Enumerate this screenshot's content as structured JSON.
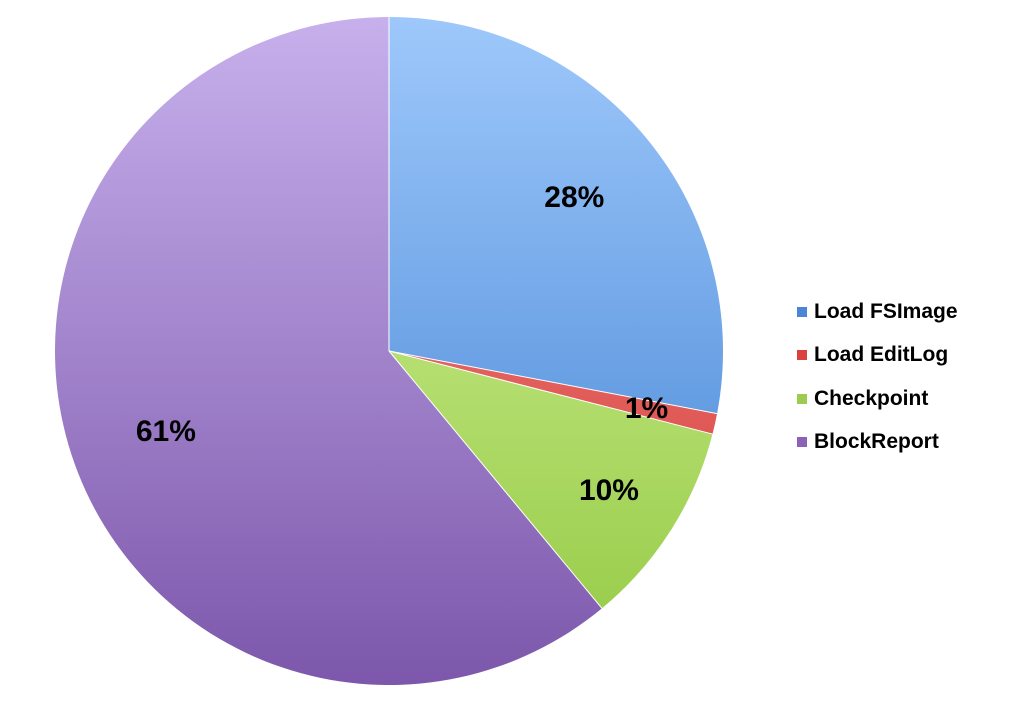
{
  "chart_data": {
    "type": "pie",
    "title": "",
    "slices": [
      {
        "label": "Load FSImage",
        "value": 28,
        "display": "28%",
        "color_top": "#9ec8fb",
        "color_bottom": "#3d7fd1",
        "swatch": "#4a86d4"
      },
      {
        "label": "Load EditLog",
        "value": 1,
        "display": "1%",
        "color_top": "#f08a88",
        "color_bottom": "#d63a36",
        "swatch": "#d9423e"
      },
      {
        "label": "Checkpoint",
        "value": 10,
        "display": "10%",
        "color_top": "#d9f5a0",
        "color_bottom": "#93c943",
        "swatch": "#9ccc4f"
      },
      {
        "label": "BlockReport",
        "value": 61,
        "display": "61%",
        "color_top": "#c7b0ec",
        "color_bottom": "#7c57ab",
        "swatch": "#8a63b8"
      }
    ],
    "start_angle": "12 o'clock",
    "direction": "clockwise",
    "legend_position": "right",
    "label_style": "percent"
  }
}
